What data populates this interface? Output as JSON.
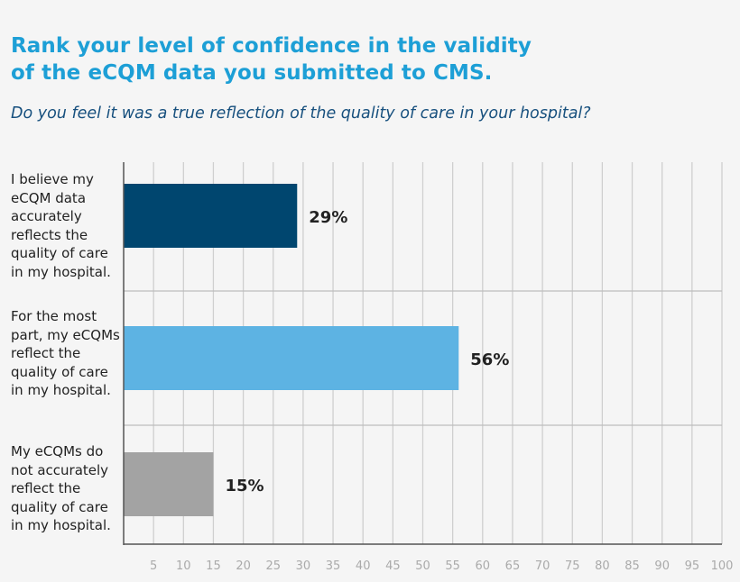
{
  "chart_data": {
    "type": "bar",
    "orientation": "horizontal",
    "title": "Rank your level of confidence in the validity of the eCQM data you submitted to CMS.",
    "title_lines": [
      "Rank your level of confidence in the validity",
      "of the eCQM data you submitted to CMS."
    ],
    "subtitle": "Do you feel it was a true reflection of the quality of care in your hospital?",
    "categories": [
      "I believe my eCQM data accurately reflects the quality of care in my hospital.",
      "For the most part, my eCQMs reflect the quality of care in my hospital.",
      "My eCQMs do not accurately reflect the quality of care in my hospital."
    ],
    "values": [
      29,
      56,
      15
    ],
    "data_labels": [
      "29%",
      "56%",
      "15%"
    ],
    "colors": [
      "#00466f",
      "#5db3e3",
      "#a3a3a3"
    ],
    "xlim": [
      0,
      100
    ],
    "xticks": [
      5,
      10,
      15,
      20,
      25,
      30,
      35,
      40,
      45,
      50,
      55,
      60,
      65,
      70,
      75,
      80,
      85,
      90,
      95,
      100
    ],
    "xticklabels": [
      "5",
      "10",
      "15",
      "20",
      "25",
      "30",
      "35",
      "40",
      "45",
      "50",
      "55",
      "60",
      "65",
      "70",
      "75",
      "80",
      "85",
      "90",
      "95",
      "100"
    ],
    "grid": true,
    "xlabel": "",
    "ylabel": ""
  }
}
